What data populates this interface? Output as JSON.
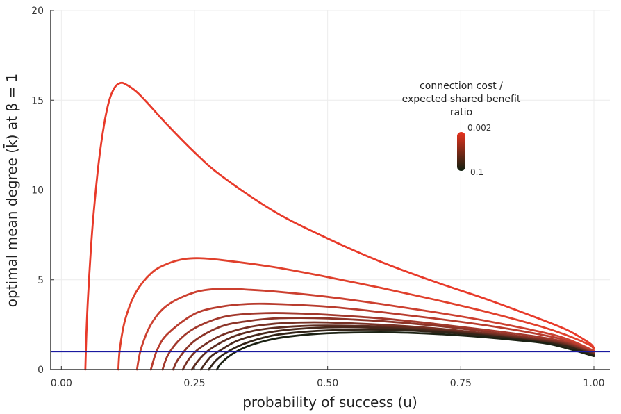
{
  "chart_data": {
    "type": "line",
    "xlabel": "probability of success (u)",
    "ylabel": "optimal mean degree (k̄) at β = 1",
    "xlim": [
      -0.02,
      1.03
    ],
    "ylim": [
      0,
      20
    ],
    "x_ticks": [
      0.0,
      0.25,
      0.5,
      0.75,
      1.0
    ],
    "x_tick_labels": [
      "0.00",
      "0.25",
      "0.50",
      "0.75",
      "1.00"
    ],
    "y_ticks": [
      0,
      5,
      10,
      15,
      20
    ],
    "y_tick_labels": [
      "0",
      "5",
      "10",
      "15",
      "20"
    ],
    "grid": true,
    "legend": {
      "title_lines": [
        "connection cost /",
        "expected shared benefit",
        "ratio"
      ],
      "max_label": "0.002",
      "min_label": "0.1",
      "placement": "top-right",
      "color_high": "#e8321e",
      "color_low": "#102010"
    },
    "reference_line": {
      "y": 1,
      "color": "#1a1aa0"
    },
    "series": [
      {
        "color": "#e83a2a",
        "x": [
          0.045,
          0.047,
          0.05,
          0.055,
          0.06,
          0.07,
          0.08,
          0.09,
          0.1,
          0.11,
          0.12,
          0.14,
          0.16,
          0.2,
          0.25,
          0.3,
          0.4,
          0.5,
          0.6,
          0.7,
          0.8,
          0.9,
          0.95,
          0.98,
          0.995,
          1.0
        ],
        "y": [
          0,
          2,
          4,
          6.5,
          8.5,
          11.5,
          13.6,
          15,
          15.7,
          15.95,
          15.9,
          15.5,
          14.9,
          13.6,
          12.1,
          10.8,
          8.8,
          7.3,
          6.0,
          4.9,
          3.9,
          2.8,
          2.2,
          1.7,
          1.4,
          1.2
        ]
      },
      {
        "color": "#e0402c",
        "x": [
          0.107,
          0.11,
          0.12,
          0.14,
          0.17,
          0.2,
          0.23,
          0.26,
          0.3,
          0.4,
          0.5,
          0.6,
          0.7,
          0.8,
          0.9,
          0.95,
          0.99,
          1.0
        ],
        "y": [
          0,
          1.2,
          2.8,
          4.3,
          5.4,
          5.9,
          6.15,
          6.2,
          6.1,
          5.7,
          5.15,
          4.55,
          3.9,
          3.2,
          2.4,
          1.9,
          1.4,
          1.15
        ]
      },
      {
        "color": "#cc4030",
        "x": [
          0.142,
          0.15,
          0.17,
          0.2,
          0.25,
          0.3,
          0.35,
          0.4,
          0.5,
          0.6,
          0.7,
          0.8,
          0.9,
          0.95,
          1.0
        ],
        "y": [
          0,
          1.2,
          2.6,
          3.6,
          4.3,
          4.5,
          4.45,
          4.35,
          4.05,
          3.65,
          3.2,
          2.7,
          2.1,
          1.7,
          1.05
        ]
      },
      {
        "color": "#b83c2e",
        "x": [
          0.168,
          0.18,
          0.2,
          0.25,
          0.3,
          0.35,
          0.4,
          0.5,
          0.6,
          0.7,
          0.8,
          0.9,
          0.95,
          1.0
        ],
        "y": [
          0,
          1.1,
          2.0,
          3.1,
          3.5,
          3.65,
          3.65,
          3.5,
          3.2,
          2.85,
          2.45,
          1.95,
          1.6,
          1.0
        ]
      },
      {
        "color": "#a2382c",
        "x": [
          0.19,
          0.2,
          0.22,
          0.25,
          0.3,
          0.35,
          0.4,
          0.45,
          0.5,
          0.6,
          0.7,
          0.8,
          0.9,
          0.95,
          1.0
        ],
        "y": [
          0,
          0.8,
          1.6,
          2.3,
          2.9,
          3.1,
          3.15,
          3.12,
          3.05,
          2.85,
          2.55,
          2.2,
          1.8,
          1.5,
          0.95
        ]
      },
      {
        "color": "#8c3428",
        "x": [
          0.21,
          0.22,
          0.25,
          0.3,
          0.35,
          0.4,
          0.45,
          0.5,
          0.6,
          0.7,
          0.8,
          0.9,
          0.95,
          1.0
        ],
        "y": [
          0,
          0.6,
          1.6,
          2.4,
          2.7,
          2.85,
          2.88,
          2.85,
          2.7,
          2.45,
          2.1,
          1.7,
          1.45,
          0.9
        ]
      },
      {
        "color": "#763024",
        "x": [
          0.228,
          0.24,
          0.26,
          0.3,
          0.35,
          0.4,
          0.45,
          0.5,
          0.6,
          0.7,
          0.8,
          0.9,
          0.95,
          1.0
        ],
        "y": [
          0,
          0.6,
          1.2,
          1.9,
          2.35,
          2.55,
          2.62,
          2.62,
          2.5,
          2.3,
          2.0,
          1.65,
          1.4,
          0.88
        ]
      },
      {
        "color": "#5e2c20",
        "x": [
          0.245,
          0.26,
          0.28,
          0.32,
          0.36,
          0.4,
          0.45,
          0.5,
          0.6,
          0.7,
          0.8,
          0.9,
          0.95,
          1.0
        ],
        "y": [
          0,
          0.6,
          1.15,
          1.8,
          2.15,
          2.32,
          2.42,
          2.45,
          2.4,
          2.22,
          1.95,
          1.6,
          1.35,
          0.85
        ]
      },
      {
        "color": "#48281c",
        "x": [
          0.262,
          0.28,
          0.3,
          0.33,
          0.37,
          0.42,
          0.5,
          0.6,
          0.7,
          0.8,
          0.9,
          0.95,
          1.0
        ],
        "y": [
          0,
          0.7,
          1.1,
          1.6,
          1.95,
          2.2,
          2.35,
          2.32,
          2.15,
          1.9,
          1.55,
          1.3,
          0.8
        ]
      },
      {
        "color": "#322418",
        "x": [
          0.277,
          0.29,
          0.31,
          0.34,
          0.38,
          0.42,
          0.5,
          0.6,
          0.7,
          0.8,
          0.9,
          0.95,
          1.0
        ],
        "y": [
          0,
          0.5,
          0.95,
          1.4,
          1.78,
          2.0,
          2.18,
          2.22,
          2.1,
          1.87,
          1.52,
          1.28,
          0.78
        ]
      },
      {
        "color": "#1c2214",
        "x": [
          0.292,
          0.3,
          0.32,
          0.35,
          0.39,
          0.43,
          0.5,
          0.58,
          0.65,
          0.75,
          0.85,
          0.92,
          1.0
        ],
        "y": [
          0,
          0.35,
          0.85,
          1.3,
          1.65,
          1.85,
          2.02,
          2.07,
          2.05,
          1.9,
          1.65,
          1.4,
          0.75
        ]
      }
    ]
  }
}
